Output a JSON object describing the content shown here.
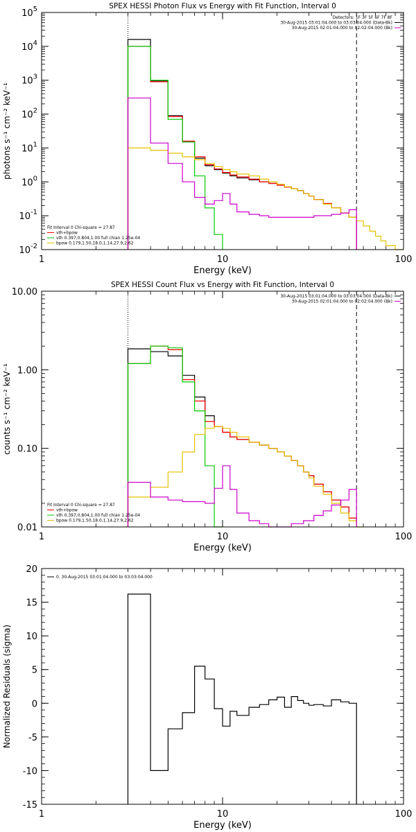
{
  "colors": {
    "total": "#000000",
    "sum": "#ff0000",
    "vth": "#00cc00",
    "bpow": "#e6c000",
    "background": "#cc00cc",
    "axis": "#000000"
  },
  "chart_data": [
    {
      "type": "line",
      "title": "SPEX HESSI Photon Flux vs Energy with Fit Function, Interval 0",
      "xlabel": "Energy (keV)",
      "ylabel": "photons s⁻¹ cm⁻² keV⁻¹",
      "xscale": "log",
      "yscale": "log",
      "xlim": [
        1,
        100
      ],
      "ylim": [
        0.01,
        100000
      ],
      "xticks": [
        {
          "v": 1,
          "label": "1"
        },
        {
          "v": 10,
          "label": "10"
        },
        {
          "v": 100,
          "label": "100"
        }
      ],
      "yticks": [
        {
          "v": 0.01,
          "base": "10",
          "exp": "-2"
        },
        {
          "v": 0.1,
          "base": "10",
          "exp": "-1"
        },
        {
          "v": 1,
          "base": "10",
          "exp": "0"
        },
        {
          "v": 10,
          "base": "10",
          "exp": "1"
        },
        {
          "v": 100,
          "base": "10",
          "exp": "2"
        },
        {
          "v": 1000,
          "base": "10",
          "exp": "3"
        },
        {
          "v": 10000,
          "base": "10",
          "exp": "4"
        },
        {
          "v": 100000,
          "base": "10",
          "exp": "5"
        }
      ],
      "vlines": [
        {
          "x": 3,
          "style": "dotted"
        },
        {
          "x": 55,
          "style": "dashed"
        }
      ],
      "legend_right": [
        {
          "text": "Detectors: 1F 3F 5F 6F 7F 8F",
          "color": ""
        },
        {
          "text": "30-Aug-2015 03:01:04.000 to 03:03:04.000 (Data-Bk)",
          "color": "total"
        },
        {
          "text": "30-Aug-2015 02:01:04.000 to 02:02:04.000 (Bk)",
          "color": "background"
        }
      ],
      "legend_left": [
        {
          "text": "Fit Interval 0   Chi-square = 27.87",
          "color": ""
        },
        {
          "text": "vth+bpow",
          "color": "sum"
        },
        {
          "text": "vth 0.397,0.804,1.00  full chian 1.25e-04",
          "color": "vth"
        },
        {
          "text": "bpow 0.179,1.50,18.0,1.14,27.9,2.62",
          "color": "bpow"
        }
      ],
      "series": [
        {
          "color": "total",
          "edges": [
            3,
            4,
            5,
            6,
            7,
            8,
            9,
            10,
            11,
            12,
            14,
            16,
            18,
            20,
            22,
            24,
            26,
            28,
            30,
            32,
            36,
            40,
            45,
            50,
            55
          ],
          "values": [
            16000,
            950,
            90,
            15,
            5,
            3,
            2.3,
            1.8,
            1.5,
            1.3,
            1.15,
            1.0,
            0.9,
            0.8,
            0.7,
            0.62,
            0.55,
            0.45,
            0.38,
            0.3,
            0.23,
            0.17,
            0.12,
            0.09
          ]
        },
        {
          "color": "sum",
          "edges": [
            3,
            4,
            5,
            6,
            7,
            8,
            9,
            10,
            11,
            12,
            14,
            16,
            18,
            20,
            22,
            24,
            26,
            28,
            30,
            32,
            36,
            40,
            45,
            50,
            55
          ],
          "values": [
            10000,
            900,
            85,
            16,
            5.5,
            3.2,
            2.4,
            1.9,
            1.6,
            1.4,
            1.2,
            1.0,
            0.9,
            0.8,
            0.7,
            0.62,
            0.55,
            0.45,
            0.38,
            0.3,
            0.23,
            0.17,
            0.12,
            0.09
          ]
        },
        {
          "color": "vth",
          "edges": [
            3,
            4,
            5,
            6,
            7,
            8,
            9,
            10
          ],
          "values": [
            10000,
            1000,
            70,
            15,
            1.5,
            0.17,
            0.028
          ]
        },
        {
          "color": "bpow",
          "edges": [
            3,
            4,
            5,
            6,
            7,
            8,
            9,
            10,
            11,
            12,
            14,
            16,
            18,
            20,
            22,
            24,
            26,
            28,
            30,
            32,
            36,
            40,
            45,
            50,
            55,
            60,
            65,
            70,
            75,
            80,
            90,
            100
          ],
          "values": [
            10,
            8.5,
            7,
            5.5,
            4.5,
            3.5,
            2.8,
            2.3,
            2.0,
            1.7,
            1.5,
            1.2,
            1.0,
            0.85,
            0.72,
            0.62,
            0.55,
            0.45,
            0.38,
            0.3,
            0.22,
            0.17,
            0.12,
            0.09,
            0.07,
            0.05,
            0.035,
            0.025,
            0.018,
            0.013,
            0.01
          ]
        },
        {
          "color": "background",
          "edges": [
            3,
            4,
            5,
            6,
            7,
            8,
            9,
            10,
            11,
            12,
            14,
            16,
            18,
            20,
            22,
            24,
            26,
            28,
            30,
            32,
            36,
            40,
            45,
            50,
            55
          ],
          "values": [
            300,
            14,
            3.5,
            1.0,
            0.35,
            0.22,
            0.28,
            0.45,
            0.22,
            0.13,
            0.11,
            0.1,
            0.09,
            0.09,
            0.09,
            0.09,
            0.09,
            0.09,
            0.09,
            0.1,
            0.1,
            0.11,
            0.12,
            0.15
          ]
        }
      ]
    },
    {
      "type": "line",
      "title": "SPEX HESSI Count Flux vs Energy with Fit Function, Interval 0",
      "xlabel": "Energy (keV)",
      "ylabel": "counts s⁻¹ cm⁻² keV⁻¹",
      "xscale": "log",
      "yscale": "log",
      "xlim": [
        1,
        100
      ],
      "ylim": [
        0.01,
        10
      ],
      "xticks": [
        {
          "v": 1,
          "label": "1"
        },
        {
          "v": 10,
          "label": "10"
        },
        {
          "v": 100,
          "label": "100"
        }
      ],
      "yticks": [
        {
          "v": 0.01,
          "label": "0.01"
        },
        {
          "v": 0.1,
          "label": "0.10"
        },
        {
          "v": 1,
          "label": "1.00"
        },
        {
          "v": 10,
          "label": "10.00"
        }
      ],
      "vlines": [
        {
          "x": 3,
          "style": "dotted"
        },
        {
          "x": 55,
          "style": "dashed"
        }
      ],
      "legend_right": [
        {
          "text": "30-Aug-2015 03:01:04.000 to 03:03:04.000 (Data-Bk)",
          "color": "total"
        },
        {
          "text": "30-Aug-2015 02:01:04.000 to 02:02:04.000 (Bk)",
          "color": "background"
        }
      ],
      "legend_left": [
        {
          "text": "Fit Interval 0   Chi-square = 27.87",
          "color": ""
        },
        {
          "text": "vth+bpow",
          "color": "sum"
        },
        {
          "text": "vth 0.397,0.804,1.00  full chian 1.25e-04",
          "color": "vth"
        },
        {
          "text": "bpow 0.179,1.50,18.0,1.14,27.9,2.62",
          "color": "bpow"
        }
      ],
      "series": [
        {
          "color": "total",
          "edges": [
            3,
            4,
            5,
            6,
            7,
            8,
            9,
            10,
            11,
            12,
            14,
            16,
            18,
            20,
            22,
            24,
            26,
            28,
            30,
            32,
            36,
            40,
            45,
            50,
            55
          ],
          "values": [
            1.85,
            1.7,
            1.5,
            0.85,
            0.45,
            0.26,
            0.19,
            0.16,
            0.14,
            0.13,
            0.12,
            0.11,
            0.1,
            0.09,
            0.08,
            0.07,
            0.06,
            0.05,
            0.045,
            0.035,
            0.028,
            0.022,
            0.018,
            0.013
          ]
        },
        {
          "color": "sum",
          "edges": [
            3,
            4,
            5,
            6,
            7,
            8,
            9,
            10,
            11,
            12,
            14,
            16,
            18,
            20,
            22,
            24,
            26,
            28,
            30,
            32,
            36,
            40,
            45,
            50,
            55
          ],
          "values": [
            1.2,
            2.0,
            1.8,
            0.75,
            0.4,
            0.22,
            0.19,
            0.16,
            0.14,
            0.13,
            0.12,
            0.11,
            0.1,
            0.09,
            0.08,
            0.07,
            0.06,
            0.05,
            0.045,
            0.035,
            0.028,
            0.022,
            0.018,
            0.013
          ]
        },
        {
          "color": "vth",
          "edges": [
            3,
            4,
            5,
            6,
            7,
            8,
            9,
            10
          ],
          "values": [
            1.2,
            2.0,
            1.9,
            0.7,
            0.3,
            0.06,
            0.01
          ]
        },
        {
          "color": "bpow",
          "edges": [
            3,
            4,
            5,
            6,
            7,
            8,
            9,
            10,
            11,
            12,
            14,
            16,
            18,
            20,
            22,
            24,
            26,
            28,
            30,
            32,
            36,
            40,
            45,
            50,
            55,
            60
          ],
          "values": [
            0.024,
            0.032,
            0.05,
            0.09,
            0.15,
            0.18,
            0.19,
            0.18,
            0.16,
            0.14,
            0.12,
            0.11,
            0.1,
            0.09,
            0.08,
            0.07,
            0.06,
            0.05,
            0.042,
            0.033,
            0.026,
            0.02,
            0.015,
            0.012,
            0.01
          ]
        },
        {
          "color": "background",
          "edges": [
            3,
            4,
            5,
            6,
            7,
            8,
            9,
            10,
            11,
            12,
            14,
            16,
            18,
            20,
            22,
            24,
            26,
            28,
            30,
            32,
            36,
            40,
            45,
            50,
            55
          ],
          "values": [
            0.037,
            0.024,
            0.022,
            0.021,
            0.021,
            0.02,
            0.031,
            0.06,
            0.03,
            0.015,
            0.012,
            0.011,
            0.01,
            0.01,
            0.01,
            0.011,
            0.011,
            0.012,
            0.012,
            0.014,
            0.016,
            0.019,
            0.022,
            0.03
          ]
        }
      ]
    },
    {
      "type": "line",
      "title": "",
      "xlabel": "Energy (keV)",
      "ylabel": "Normalized Residuals (sigma)",
      "xscale": "log",
      "yscale": "linear",
      "xlim": [
        1,
        100
      ],
      "ylim": [
        -15,
        20
      ],
      "xticks": [
        {
          "v": 1,
          "label": "1"
        },
        {
          "v": 10,
          "label": "10"
        },
        {
          "v": 100,
          "label": "100"
        }
      ],
      "yticks": [
        {
          "v": -15,
          "label": "-15"
        },
        {
          "v": -10,
          "label": "-10"
        },
        {
          "v": -5,
          "label": "-5"
        },
        {
          "v": 0,
          "label": "0"
        },
        {
          "v": 5,
          "label": "5"
        },
        {
          "v": 10,
          "label": "10"
        },
        {
          "v": 15,
          "label": "15"
        },
        {
          "v": 20,
          "label": "20"
        }
      ],
      "vlines": [],
      "legend_right": [],
      "legend_left": [
        {
          "text": "0. 30-Aug-2015 03:01:04.000 to 03:03:04.000",
          "color": "total"
        }
      ],
      "series": [
        {
          "color": "total",
          "edges": [
            3,
            4,
            5,
            6,
            7,
            8,
            9,
            10,
            11,
            12,
            14,
            16,
            18,
            20,
            22,
            24,
            26,
            28,
            30,
            32,
            36,
            40,
            45,
            50,
            55
          ],
          "values": [
            16.2,
            -10.0,
            -3.8,
            -1.4,
            5.5,
            3.6,
            -0.8,
            -3.4,
            -1.2,
            -1.8,
            -0.6,
            -0.2,
            0.5,
            0.9,
            -0.6,
            1.0,
            0.4,
            0.0,
            -0.3,
            -0.2,
            -0.4,
            0.5,
            0.2,
            0.0
          ]
        }
      ]
    }
  ]
}
